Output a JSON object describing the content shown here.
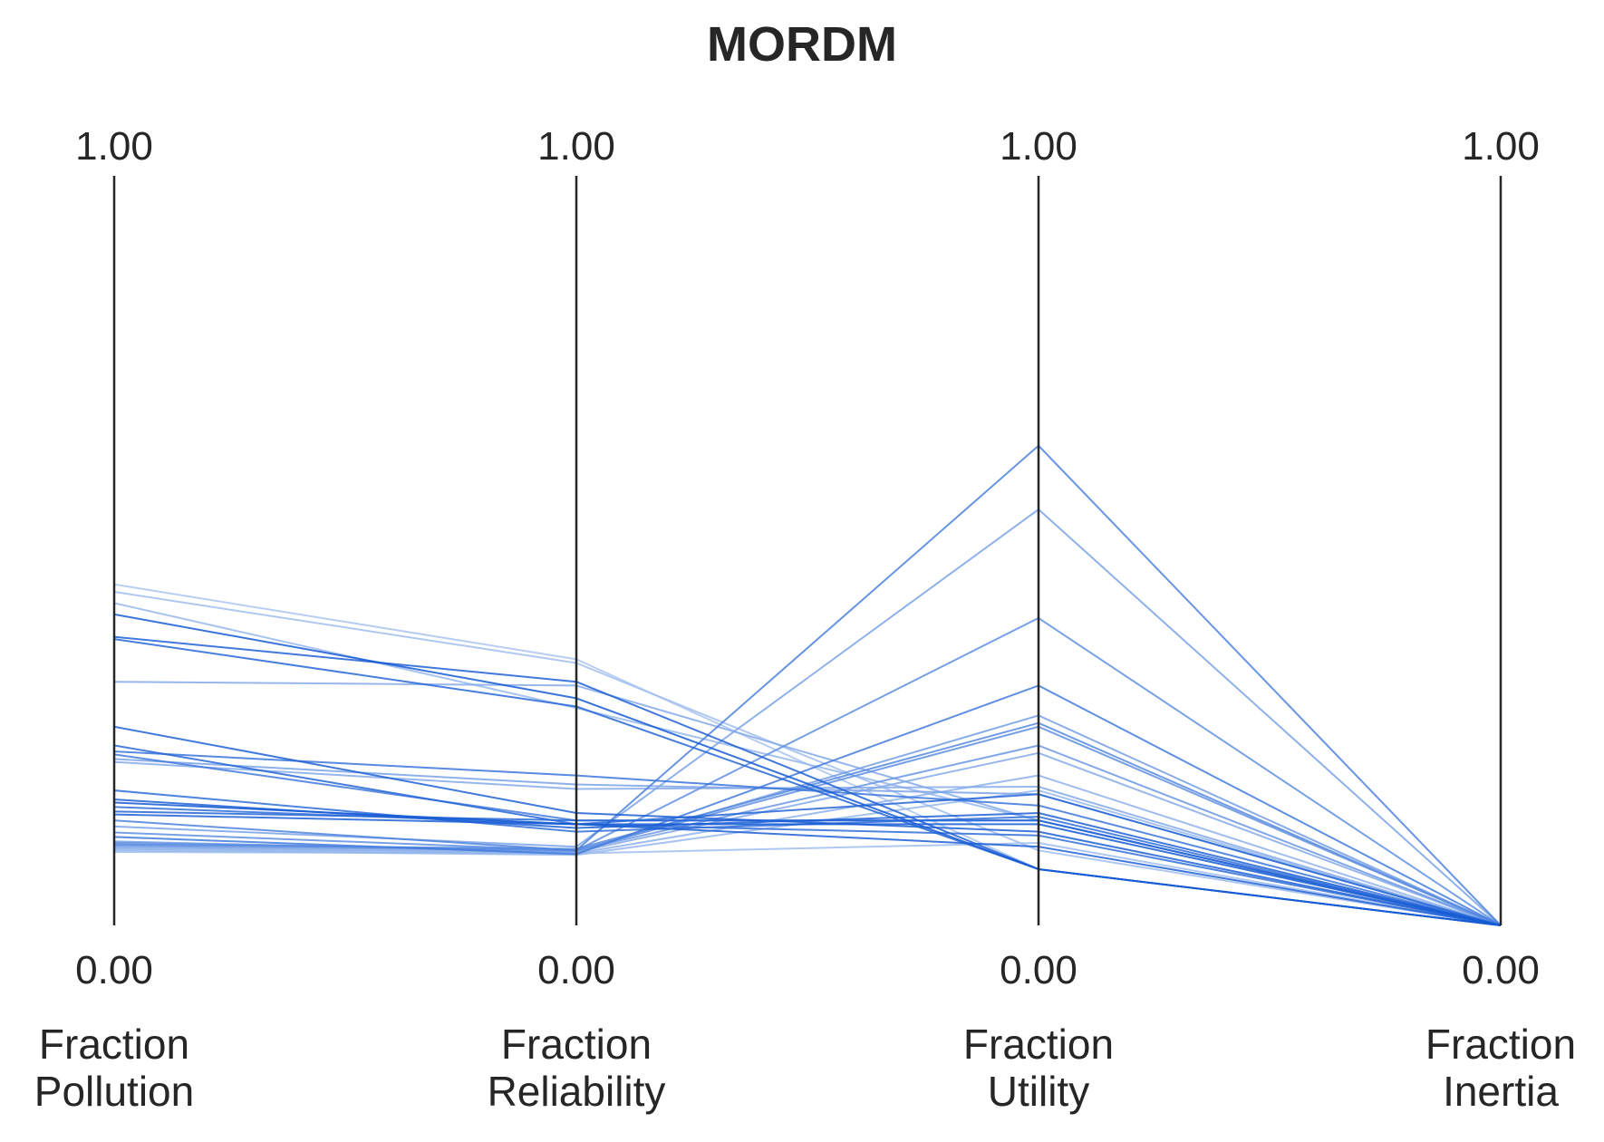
{
  "chart_data": {
    "type": "parallel-coordinates",
    "title": "MORDM",
    "axes": [
      {
        "label": [
          "Fraction",
          "Pollution"
        ],
        "max_label": "1.00",
        "min_label": "0.00"
      },
      {
        "label": [
          "Fraction",
          "Reliability"
        ],
        "max_label": "1.00",
        "min_label": "0.00"
      },
      {
        "label": [
          "Fraction",
          "Utility"
        ],
        "max_label": "1.00",
        "min_label": "0.00"
      },
      {
        "label": [
          "Fraction",
          "Inertia"
        ],
        "max_label": "1.00",
        "min_label": "0.00"
      }
    ],
    "range": [
      0,
      1
    ],
    "grid": false,
    "color_scale": {
      "light": "#c6d9f5",
      "dark": "#0b53d2"
    },
    "series": [
      {
        "values": [
          0.455,
          0.355,
          0.075,
          0.0
        ],
        "shade": 0.15
      },
      {
        "values": [
          0.445,
          0.35,
          0.1,
          0.0
        ],
        "shade": 0.2
      },
      {
        "values": [
          0.43,
          0.29,
          0.14,
          0.0
        ],
        "shade": 0.25
      },
      {
        "values": [
          0.415,
          0.303,
          0.075,
          0.0
        ],
        "shade": 0.95
      },
      {
        "values": [
          0.385,
          0.325,
          0.075,
          0.0
        ],
        "shade": 0.9
      },
      {
        "values": [
          0.382,
          0.292,
          0.075,
          0.0
        ],
        "shade": 0.85
      },
      {
        "values": [
          0.325,
          0.32,
          0.14,
          0.0
        ],
        "shade": 0.35
      },
      {
        "values": [
          0.265,
          0.15,
          0.125,
          0.0
        ],
        "shade": 0.9
      },
      {
        "values": [
          0.24,
          0.135,
          0.175,
          0.0
        ],
        "shade": 0.85
      },
      {
        "values": [
          0.232,
          0.2,
          0.16,
          0.0
        ],
        "shade": 0.75
      },
      {
        "values": [
          0.228,
          0.14,
          0.14,
          0.0
        ],
        "shade": 0.7
      },
      {
        "values": [
          0.222,
          0.188,
          0.175,
          0.0
        ],
        "shade": 0.4
      },
      {
        "values": [
          0.218,
          0.182,
          0.185,
          0.0
        ],
        "shade": 0.35
      },
      {
        "values": [
          0.18,
          0.125,
          0.145,
          0.0
        ],
        "shade": 0.8
      },
      {
        "values": [
          0.168,
          0.13,
          0.15,
          0.0
        ],
        "shade": 0.9
      },
      {
        "values": [
          0.164,
          0.135,
          0.135,
          0.0
        ],
        "shade": 0.95
      },
      {
        "values": [
          0.158,
          0.135,
          0.12,
          0.0
        ],
        "shade": 0.8
      },
      {
        "values": [
          0.152,
          0.14,
          0.14,
          0.0
        ],
        "shade": 0.85
      },
      {
        "values": [
          0.148,
          0.135,
          0.105,
          0.0
        ],
        "shade": 0.9
      },
      {
        "values": [
          0.14,
          0.1,
          0.64,
          0.0
        ],
        "shade": 0.65
      },
      {
        "values": [
          0.132,
          0.105,
          0.555,
          0.0
        ],
        "shade": 0.4
      },
      {
        "values": [
          0.124,
          0.1,
          0.41,
          0.0
        ],
        "shade": 0.55
      },
      {
        "values": [
          0.118,
          0.095,
          0.32,
          0.0
        ],
        "shade": 0.7
      },
      {
        "values": [
          0.112,
          0.098,
          0.28,
          0.0
        ],
        "shade": 0.45
      },
      {
        "values": [
          0.11,
          0.1,
          0.265,
          0.0
        ],
        "shade": 0.55
      },
      {
        "values": [
          0.108,
          0.102,
          0.27,
          0.0
        ],
        "shade": 0.6
      },
      {
        "values": [
          0.106,
          0.1,
          0.24,
          0.0
        ],
        "shade": 0.5
      },
      {
        "values": [
          0.104,
          0.098,
          0.23,
          0.0
        ],
        "shade": 0.35
      },
      {
        "values": [
          0.102,
          0.096,
          0.2,
          0.0
        ],
        "shade": 0.3
      },
      {
        "values": [
          0.1,
          0.094,
          0.18,
          0.0
        ],
        "shade": 0.25
      },
      {
        "values": [
          0.098,
          0.096,
          0.11,
          0.0
        ],
        "shade": 0.2
      }
    ]
  }
}
